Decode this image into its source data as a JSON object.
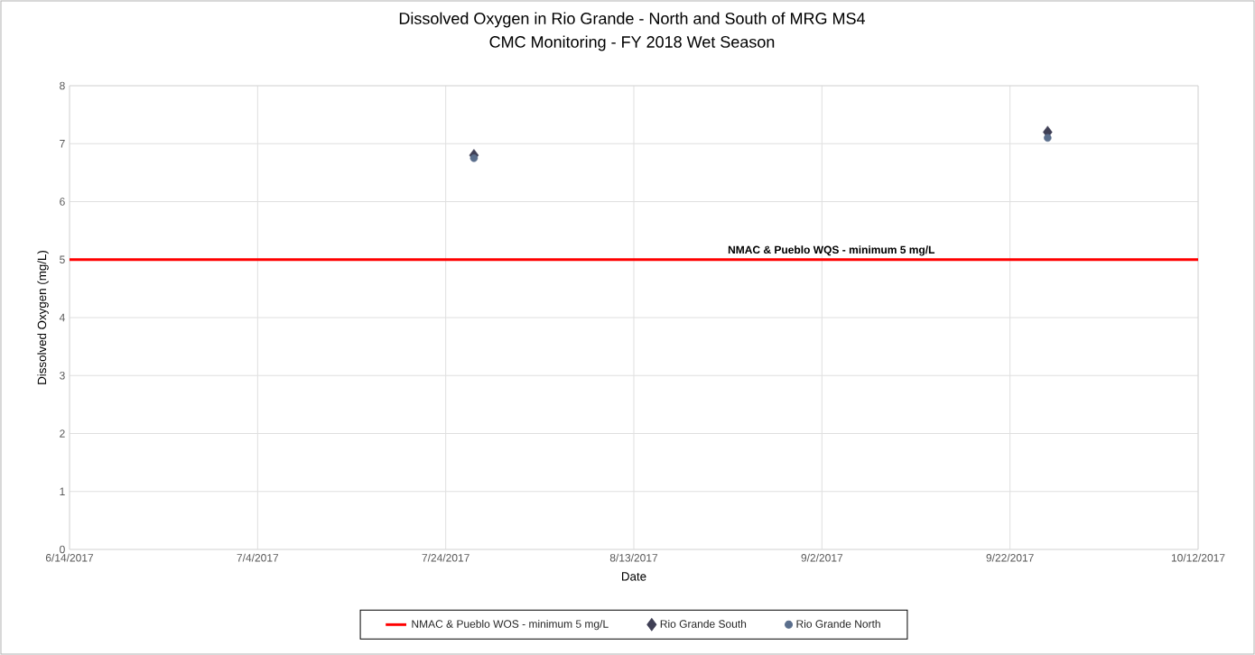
{
  "chart_data": {
    "type": "scatter",
    "title": "Dissolved Oxygen in Rio Grande - North and South of MRG MS4",
    "subtitle": "CMC Monitoring - FY 2018 Wet Season",
    "xlabel": "Date",
    "ylabel": "Dissolved Oxygen (mg/L)",
    "series": [
      {
        "name": "NMAC & Pueblo WOS - minimum 5 mg/L",
        "type": "line",
        "color": "#ff0000",
        "marker": "none",
        "x": [
          "2017-06-14",
          "2017-10-12"
        ],
        "values": [
          5,
          5
        ]
      },
      {
        "name": "Rio Grande South",
        "color": "#3f3f55",
        "marker": "diamond",
        "x": [
          "2017-07-27",
          "2017-09-26"
        ],
        "values": [
          6.8,
          7.2
        ]
      },
      {
        "name": "Rio Grande North",
        "color": "#5a6e8c",
        "marker": "circle",
        "x": [
          "2017-07-27",
          "2017-09-26"
        ],
        "values": [
          6.75,
          7.1
        ]
      }
    ],
    "annotations": [
      {
        "text": "NMAC &  Pueblo WQS - minimum 5 mg/L",
        "x": "2017-09-03",
        "y": 5
      }
    ],
    "xlim": [
      "2017-06-14",
      "2017-10-12"
    ],
    "xticks": [
      {
        "value": "2017-06-14",
        "label": "6/14/2017"
      },
      {
        "value": "2017-07-04",
        "label": "7/4/2017"
      },
      {
        "value": "2017-07-24",
        "label": "7/24/2017"
      },
      {
        "value": "2017-08-13",
        "label": "8/13/2017"
      },
      {
        "value": "2017-09-02",
        "label": "9/2/2017"
      },
      {
        "value": "2017-09-22",
        "label": "9/22/2017"
      },
      {
        "value": "2017-10-12",
        "label": "10/12/2017"
      }
    ],
    "ylim": [
      0,
      8
    ],
    "yticks": [
      0,
      1,
      2,
      3,
      4,
      5,
      6,
      7,
      8
    ],
    "grid": true,
    "legend": "bottom"
  }
}
